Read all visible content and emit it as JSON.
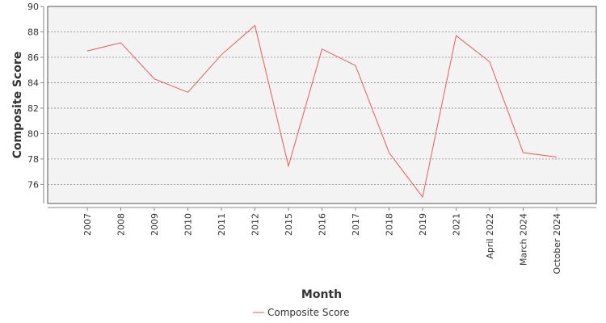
{
  "chart_data": {
    "type": "line",
    "title": "",
    "xlabel": "Month",
    "ylabel": "Composite Score",
    "categories": [
      "2007",
      "2008",
      "2009",
      "2010",
      "2011",
      "2012",
      "2015",
      "2016",
      "2017",
      "2018",
      "2019",
      "2021",
      "April 2022",
      "March 2024",
      "October 2024"
    ],
    "series": [
      {
        "name": "Composite Score",
        "values": [
          86.5,
          87.15,
          84.3,
          83.25,
          86.2,
          88.5,
          77.45,
          86.65,
          85.35,
          78.5,
          75.0,
          87.7,
          85.65,
          78.5,
          78.15
        ]
      }
    ],
    "ylim": [
      74.5,
      90
    ],
    "yticks": [
      76,
      78,
      80,
      82,
      84,
      86,
      88,
      90
    ],
    "grid": true,
    "legend": "bottom-center",
    "colors": {
      "line": "#f05a5a",
      "plot_background": "#f3f3f3",
      "grid": "#888888",
      "frame": "#555555"
    }
  }
}
